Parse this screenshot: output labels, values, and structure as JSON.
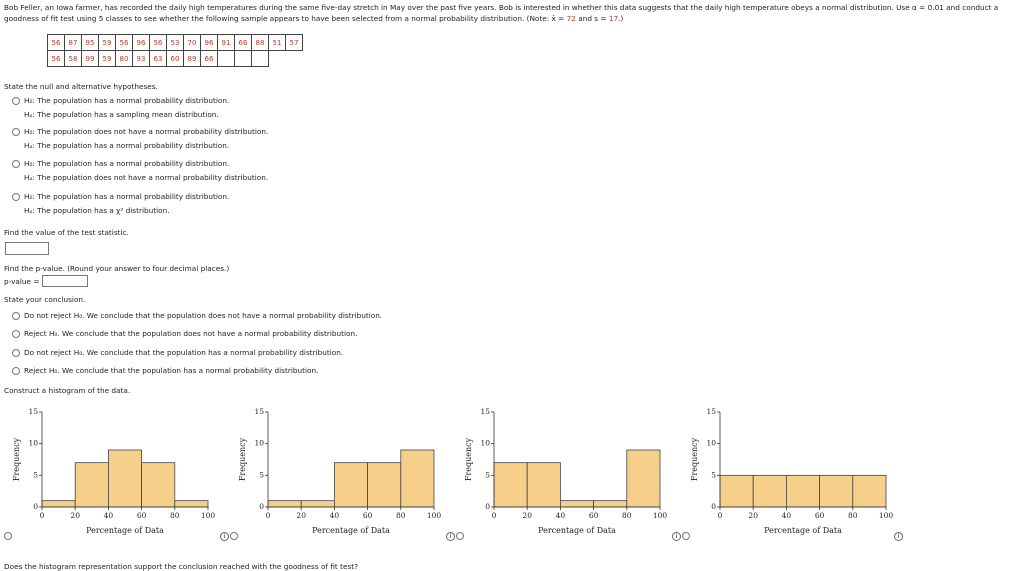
{
  "problem": {
    "intro_1": "Bob Feller, an Iowa farmer, has recorded the daily high temperatures during the same five-day stretch in May over the past five years. Bob is interested in whether this data suggests that the daily high temperature obeys a normal distribution. Use α = 0.01 and conduct a",
    "intro_2": "goodness of fit test using 5 classes to see whether the following sample appears to have been selected from a normal probability distribution. (Note:",
    "mean_label": "x̄ =",
    "mean": 72,
    "and": "and",
    "sd_label": "s =",
    "sd": 17,
    "close": ".)"
  },
  "table": {
    "rows": [
      [
        56,
        87,
        95,
        59,
        56,
        96,
        56,
        53,
        70,
        96,
        91,
        66,
        88,
        51,
        57
      ],
      [
        56,
        58,
        99,
        59,
        80,
        93,
        63,
        60,
        89,
        66
      ]
    ]
  },
  "hypotheses": {
    "prompt": "State the null and alternative hypotheses.",
    "options": [
      [
        "H₀: The population has a normal probability distribution.",
        "Hₐ: The population has a sampling mean distribution."
      ],
      [
        "H₀: The population does not have a normal probability distribution.",
        "Hₐ: The population has a normal probability distribution."
      ],
      [
        "H₀: The population has a normal probability distribution.",
        "Hₐ: The population does not have a normal probability distribution."
      ],
      [
        "H₀: The population has a normal probability distribution.",
        "Hₐ: The population has a χ² distribution."
      ]
    ]
  },
  "statistic": {
    "prompt": "Find the value of the test statistic."
  },
  "pvalue": {
    "prompt": "Find the p-value. (Round your answer to four decimal places.)",
    "label": "p-value ="
  },
  "conclusion": {
    "prompt": "State your conclusion.",
    "options": [
      "Do not reject H₀. We conclude that the population does not have a normal probability distribution.",
      "Reject H₀. We conclude that the population does not have a normal probability distribution.",
      "Do not reject H₀. We conclude that the population has a normal probability distribution.",
      "Reject H₀. We conclude that the population has a normal probability distribution."
    ]
  },
  "histogram_prompt": "Construct a histogram of the data.",
  "histograms": [
    {
      "type": "histogram",
      "ylabel": "Frequency",
      "xlabel": "Percentage of Data",
      "bins": [
        0,
        20,
        40,
        60,
        80,
        100
      ],
      "values": [
        1,
        7,
        9,
        7,
        1
      ],
      "color": "#f6d08a",
      "xlim": [
        0,
        100
      ],
      "ylim": [
        0,
        15
      ],
      "xticks": [
        0,
        20,
        40,
        60,
        80,
        100
      ],
      "yticks": [
        0,
        5,
        10,
        15
      ]
    },
    {
      "type": "histogram",
      "ylabel": "Frequency",
      "xlabel": "Percentage of Data",
      "bins": [
        0,
        20,
        40,
        60,
        80,
        100
      ],
      "values": [
        1,
        1,
        7,
        7,
        9
      ],
      "color": "#f6d08a",
      "xlim": [
        0,
        100
      ],
      "ylim": [
        0,
        15
      ],
      "xticks": [
        0,
        20,
        40,
        60,
        80,
        100
      ],
      "yticks": [
        0,
        5,
        10,
        15
      ]
    },
    {
      "type": "histogram",
      "ylabel": "Frequency",
      "xlabel": "Percentage of Data",
      "bins": [
        0,
        20,
        40,
        60,
        80,
        100
      ],
      "values": [
        7,
        7,
        1,
        1,
        9
      ],
      "color": "#f6d08a",
      "xlim": [
        0,
        100
      ],
      "ylim": [
        0,
        15
      ],
      "xticks": [
        0,
        20,
        40,
        60,
        80,
        100
      ],
      "yticks": [
        0,
        5,
        10,
        15
      ]
    },
    {
      "type": "histogram",
      "ylabel": "Frequency",
      "xlabel": "Percentage of Data",
      "bins": [
        0,
        20,
        40,
        60,
        80,
        100
      ],
      "values": [
        5,
        5,
        5,
        5,
        5
      ],
      "color": "#f6d08a",
      "xlim": [
        0,
        100
      ],
      "ylim": [
        0,
        15
      ],
      "xticks": [
        0,
        20,
        40,
        60,
        80,
        100
      ],
      "yticks": [
        0,
        5,
        10,
        15
      ]
    }
  ],
  "final_question": "Does the histogram representation support the conclusion reached with the goodness of fit test?"
}
